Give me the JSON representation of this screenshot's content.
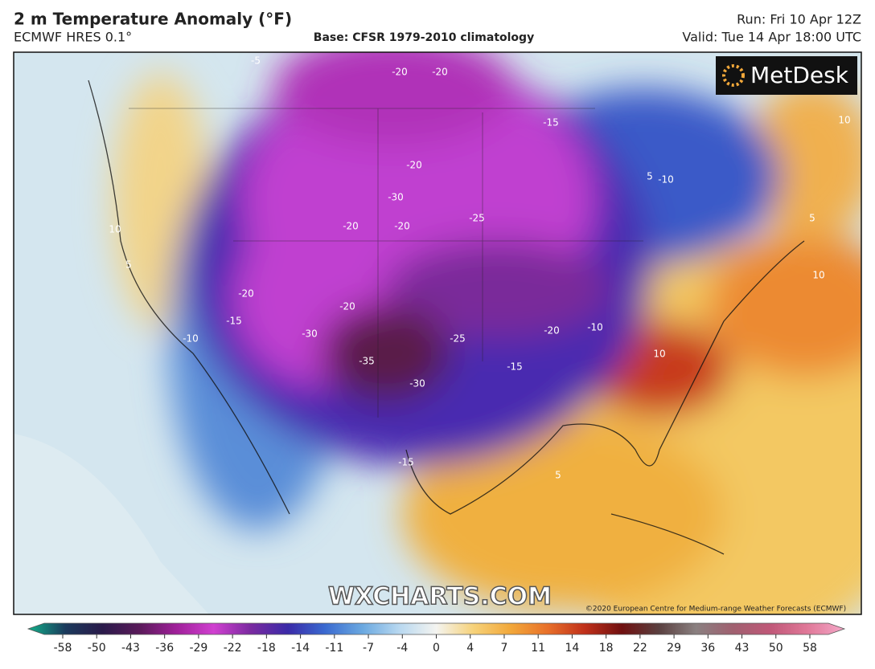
{
  "header": {
    "title": "2 m Temperature Anomaly (°F)",
    "model": "ECMWF HRES 0.1°",
    "base": "Base: CFSR 1979-2010 climatology",
    "run": "Run: Fri 10 Apr 12Z",
    "valid": "Valid: Tue 14 Apr 18:00 UTC"
  },
  "map": {
    "logo": "MetDesk",
    "watermark": "WXCHARTS.COM",
    "copyright": "©2020 European Centre for Medium-range Weather Forecasts (ECMWF)",
    "contour_labels": [
      -20,
      -20,
      -15,
      -20,
      -30,
      -25,
      -20,
      -20,
      -20,
      -20,
      -15,
      -10,
      -30,
      -25,
      -20,
      -35,
      -30,
      -15,
      -10,
      -15,
      10,
      5,
      -10,
      10,
      5,
      5,
      10,
      5,
      -5,
      10
    ]
  },
  "colorbar": {
    "ticks": [
      -58,
      -50,
      -43,
      -36,
      -29,
      -22,
      -18,
      -14,
      -11,
      -7,
      -4,
      0,
      4,
      7,
      11,
      14,
      18,
      22,
      29,
      36,
      43,
      50,
      58
    ],
    "colors": [
      "#12b08a",
      "#1b3a5c",
      "#2a1a4a",
      "#5a1a5a",
      "#a0209a",
      "#d040d0",
      "#7a2aa0",
      "#3a2aa8",
      "#3a6ad0",
      "#6aa8e0",
      "#b8d8f0",
      "#f4f4f0",
      "#f6d27a",
      "#f2a83a",
      "#e8702a",
      "#c0301a",
      "#701010",
      "#5a4040",
      "#8a8080",
      "#a06070",
      "#c05878",
      "#e07898",
      "#f4a8c8"
    ]
  }
}
